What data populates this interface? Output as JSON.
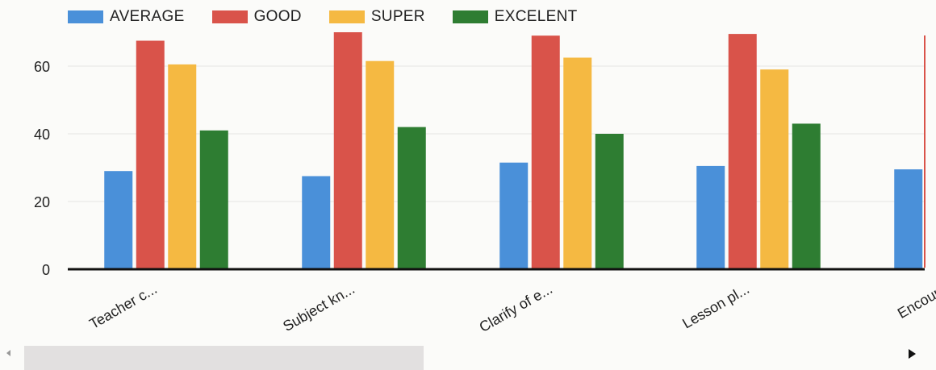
{
  "chart_data": {
    "type": "bar",
    "categories": [
      "Teacher c...",
      "Subject kn...",
      "Clarify of e...",
      "Lesson pl...",
      "Encoura"
    ],
    "series": [
      {
        "name": "AVERAGE",
        "color": "#4a90d9",
        "values": [
          29,
          27.5,
          31.5,
          30.5,
          29.5
        ]
      },
      {
        "name": "GOOD",
        "color": "#d9534a",
        "values": [
          67.5,
          70,
          69,
          69.5,
          null
        ]
      },
      {
        "name": "SUPER",
        "color": "#f5b942",
        "values": [
          60.5,
          61.5,
          62.5,
          59,
          null
        ]
      },
      {
        "name": "EXCELENT",
        "color": "#2e7d32",
        "values": [
          41,
          42,
          40,
          43,
          null
        ]
      }
    ],
    "yticks": [
      "0",
      "20",
      "40",
      "60"
    ],
    "ylim": [
      0,
      70
    ],
    "grid": true,
    "legend_position": "top-left"
  }
}
